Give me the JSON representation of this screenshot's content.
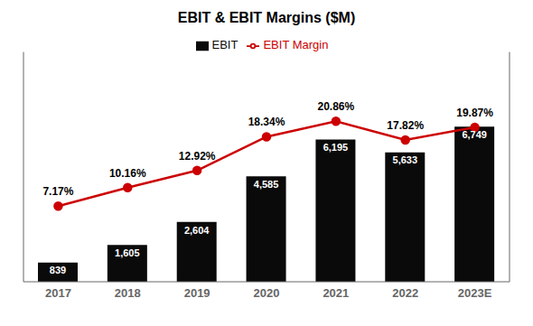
{
  "chart_data": {
    "type": "bar",
    "title": "EBIT & EBIT Margins ($M)",
    "categories": [
      "2017",
      "2018",
      "2019",
      "2020",
      "2021",
      "2022",
      "2023E"
    ],
    "series": [
      {
        "name": "EBIT",
        "type": "bar",
        "color": "#0a0a0a",
        "values": [
          839,
          1605,
          2604,
          4585,
          6195,
          5633,
          6749
        ],
        "value_labels": [
          "839",
          "1,605",
          "2,604",
          "4,585",
          "6,195",
          "5,633",
          "6,749"
        ]
      },
      {
        "name": "EBIT Margin",
        "type": "line",
        "axis": "y2",
        "color": "#cc0000",
        "marker": "o",
        "values": [
          7.17,
          10.16,
          12.92,
          18.34,
          20.86,
          17.82,
          19.87
        ],
        "value_labels": [
          "7.17%",
          "10.16%",
          "12.92%",
          "18.34%",
          "20.86%",
          "17.82%",
          "19.87%"
        ]
      }
    ],
    "ylim": [
      0,
      10000
    ],
    "y2lim": [
      -5,
      32
    ],
    "data_labels": true,
    "legend": "top",
    "grid": false,
    "tick_labels": "x"
  }
}
